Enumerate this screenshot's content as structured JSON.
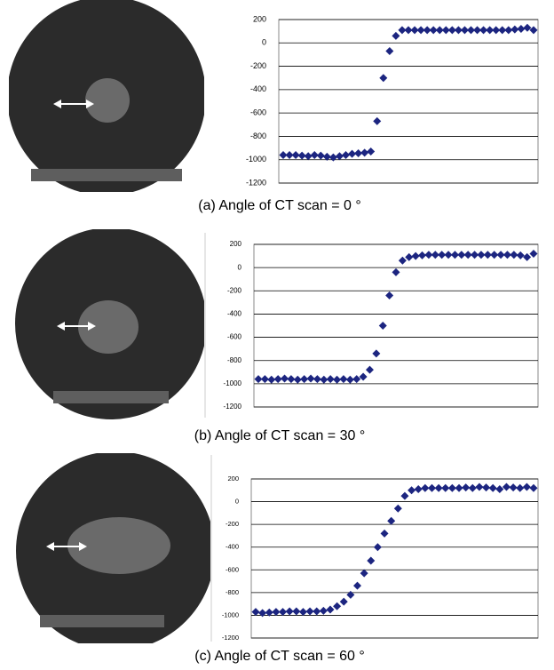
{
  "chart_data": [
    {
      "type": "scatter",
      "caption": "(a) Angle of CT scan = 0 °",
      "color": "#1c2580",
      "grid": true,
      "values": [
        -960,
        -960,
        -960,
        -965,
        -970,
        -960,
        -965,
        -975,
        -980,
        -970,
        -960,
        -950,
        -945,
        -940,
        -930,
        -670,
        -300,
        -70,
        60,
        110,
        110,
        110,
        110,
        110,
        110,
        110,
        110,
        110,
        110,
        110,
        110,
        110,
        110,
        110,
        110,
        110,
        110,
        115,
        120,
        130,
        110
      ],
      "ylim": [
        -1200,
        200
      ],
      "yticks": [
        -1200,
        -1000,
        -800,
        -600,
        -400,
        -200,
        0,
        200
      ]
    },
    {
      "type": "scatter",
      "caption": "(b) Angle of CT scan = 30 °",
      "color": "#1c2580",
      "grid": true,
      "values": [
        -960,
        -960,
        -965,
        -960,
        -955,
        -960,
        -965,
        -960,
        -955,
        -960,
        -965,
        -960,
        -965,
        -960,
        -965,
        -960,
        -940,
        -880,
        -740,
        -500,
        -240,
        -40,
        60,
        90,
        100,
        105,
        110,
        110,
        110,
        110,
        110,
        110,
        110,
        110,
        110,
        110,
        110,
        110,
        110,
        110,
        105,
        90,
        120
      ],
      "ylim": [
        -1200,
        200
      ],
      "yticks": [
        -1200,
        -1000,
        -800,
        -600,
        -400,
        -200,
        0,
        200
      ]
    },
    {
      "type": "scatter",
      "caption": "(c) Angle of CT scan = 60 °",
      "color": "#1c2580",
      "grid": true,
      "values": [
        -970,
        -980,
        -975,
        -970,
        -970,
        -965,
        -965,
        -970,
        -965,
        -965,
        -960,
        -950,
        -920,
        -880,
        -820,
        -740,
        -630,
        -520,
        -400,
        -280,
        -170,
        -60,
        50,
        100,
        110,
        120,
        120,
        120,
        120,
        120,
        120,
        125,
        120,
        130,
        125,
        120,
        110,
        130,
        125,
        120,
        130,
        120
      ],
      "ylim": [
        -1200,
        200
      ],
      "yticks": [
        -1200,
        -1000,
        -800,
        -600,
        -400,
        -200,
        0,
        200
      ]
    }
  ]
}
